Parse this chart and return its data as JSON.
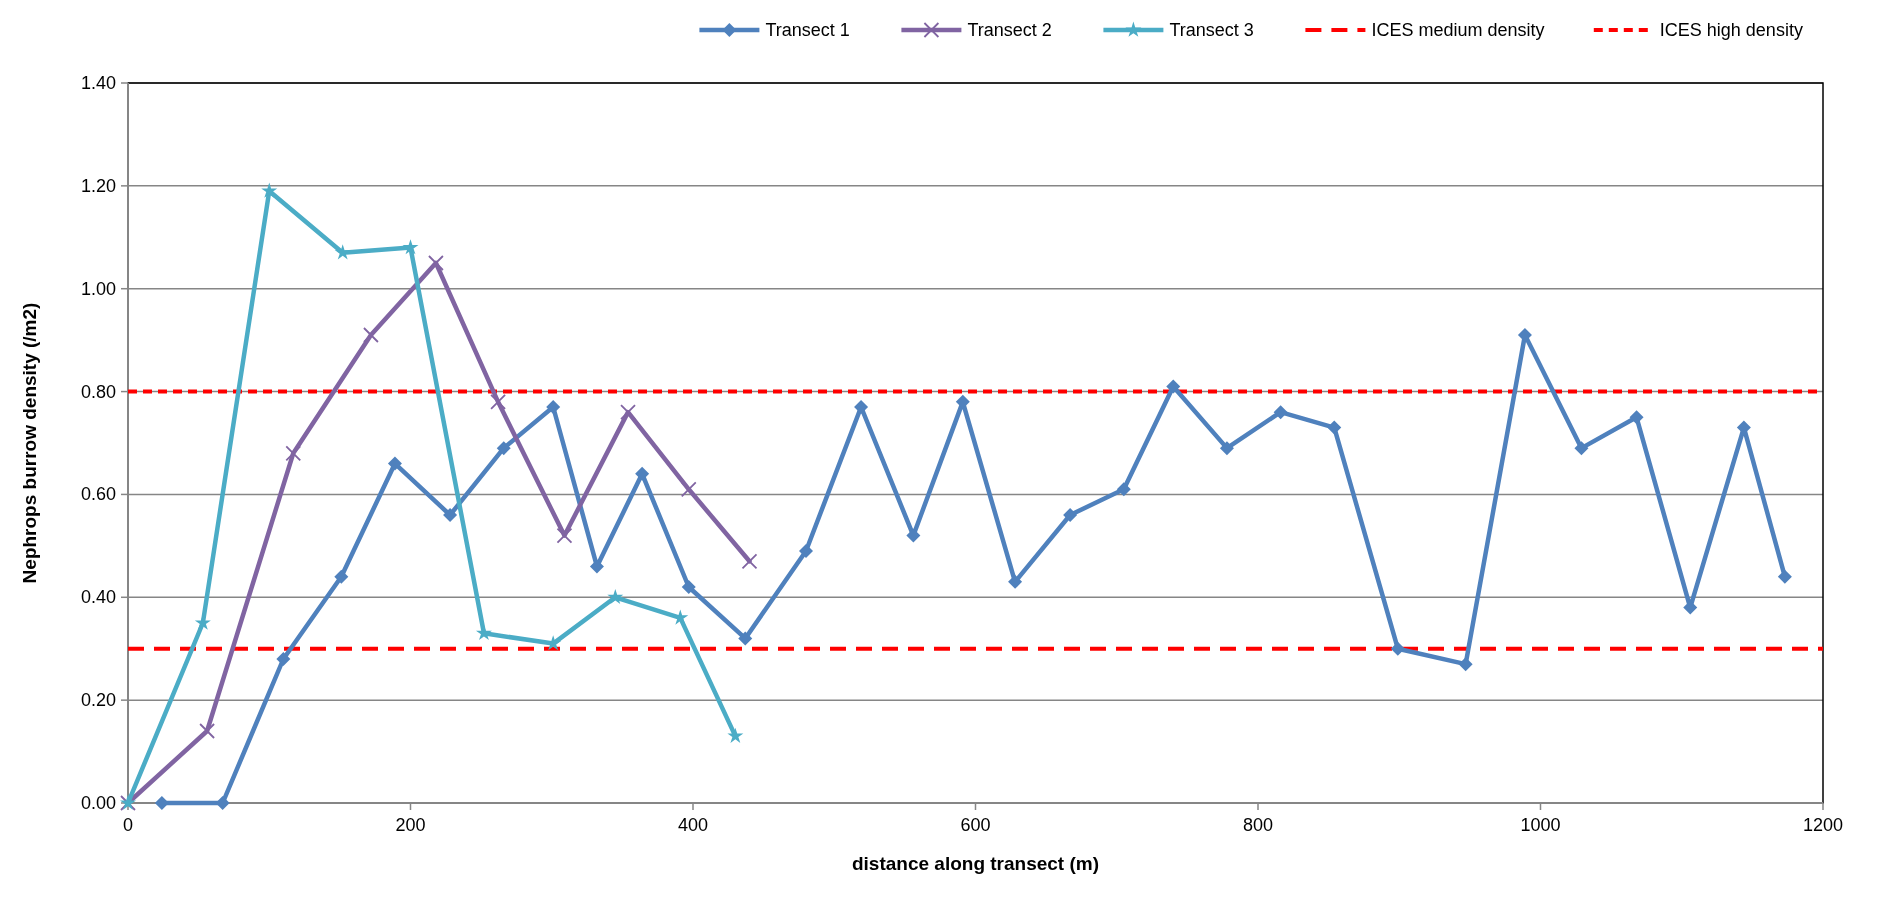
{
  "chart_data": {
    "type": "line",
    "xlabel": "distance along transect (m)",
    "ylabel": "Nephrops burrow density (/m2)",
    "xlim": [
      0,
      1200
    ],
    "xticks": [
      0,
      200,
      400,
      600,
      800,
      1000,
      1200
    ],
    "ylim": [
      0,
      1.4
    ],
    "yticks": [
      {
        "value": 0,
        "label": "0.00"
      },
      {
        "value": 0.2,
        "label": "0.20"
      },
      {
        "value": 0.4,
        "label": "0.40"
      },
      {
        "value": 0.6,
        "label": "0.60"
      },
      {
        "value": 0.8,
        "label": "0.80"
      },
      {
        "value": 1.0,
        "label": "1.00"
      },
      {
        "value": 1.2,
        "label": "1.20"
      },
      {
        "value": 1.4,
        "label": "1.40"
      }
    ],
    "grid": "y",
    "legend": "top right",
    "line_style": "solid",
    "series": [
      {
        "name": "Transect 1",
        "color": "#4f81bd",
        "marker": "diamond",
        "x": [
          24,
          67,
          110,
          151,
          189,
          228,
          266,
          301,
          332,
          364,
          397,
          437,
          480,
          519,
          556,
          591,
          628,
          667,
          705,
          740,
          778,
          816,
          854,
          899,
          947,
          989,
          1029,
          1068,
          1106,
          1144,
          1173
        ],
        "values": [
          0,
          0,
          0.28,
          0.44,
          0.66,
          0.56,
          0.69,
          0.77,
          0.46,
          0.64,
          0.42,
          0.32,
          0.49,
          0.77,
          0.52,
          0.78,
          0.43,
          0.56,
          0.61,
          0.81,
          0.69,
          0.76,
          0.73,
          0.3,
          0.27,
          0.91,
          0.69,
          0.75,
          0.38,
          0.73,
          0.44
        ]
      },
      {
        "name": "Transect 2",
        "color": "#8064a2",
        "marker": "cross",
        "x": [
          0,
          56,
          117,
          172,
          218,
          262,
          309,
          354,
          397,
          440
        ],
        "values": [
          0,
          0.14,
          0.68,
          0.91,
          1.05,
          0.78,
          0.52,
          0.76,
          0.61,
          0.47
        ]
      },
      {
        "name": "Transect 3",
        "color": "#4bacc6",
        "marker": "star",
        "x": [
          0,
          53,
          100,
          152,
          200,
          252,
          301,
          345,
          391,
          430
        ],
        "values": [
          0,
          0.35,
          1.19,
          1.07,
          1.08,
          0.33,
          0.31,
          0.4,
          0.36,
          0.13
        ]
      }
    ],
    "ref_lines": [
      {
        "axis": "y",
        "value": 0.3,
        "label": "ICES medium density",
        "color": "#ff0000",
        "line_style": "dashed"
      },
      {
        "axis": "y",
        "value": 0.8,
        "label": "ICES high density",
        "color": "#ff0000",
        "line_style": "dotted"
      }
    ]
  }
}
